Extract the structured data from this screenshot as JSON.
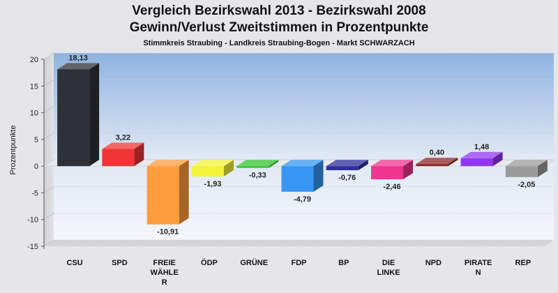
{
  "chart_data": {
    "type": "bar",
    "title": "Vergleich Bezirkswahl 2013 - Bezirkswahl 2008",
    "subtitle_line2": "Gewinn/Verlust Zweitstimmen in Prozentpunkte",
    "subtitle": "Stimmkreis Straubing - Landkreis Straubing-Bogen - Markt SCHWARZACH",
    "xlabel": "",
    "ylabel": "Prozentpunkte",
    "ylim": [
      -15,
      20
    ],
    "yticks": [
      20,
      15,
      10,
      5,
      0,
      -5,
      -10,
      -15
    ],
    "grid": true,
    "categories": [
      [
        "CSU"
      ],
      [
        "SPD"
      ],
      [
        "FREIE",
        "WÄHLE",
        "R"
      ],
      [
        "ÖDP"
      ],
      [
        "GRÜNE"
      ],
      [
        "FDP"
      ],
      [
        "BP"
      ],
      [
        "DIE",
        "LINKE"
      ],
      [
        "NPD"
      ],
      [
        "PIRATE",
        "N"
      ],
      [
        "REP"
      ]
    ],
    "values": [
      18.13,
      3.22,
      -10.91,
      -1.93,
      -0.33,
      -4.79,
      -0.76,
      -2.46,
      0.4,
      1.48,
      -2.05
    ],
    "value_labels": [
      "18,13",
      "3,22",
      "-10,91",
      "-1,93",
      "-0,33",
      "-4,79",
      "-0,76",
      "-2,46",
      "0,40",
      "1,48",
      "-2,05"
    ],
    "colors": [
      "#2e3138",
      "#ef3535",
      "#ff9c3c",
      "#f3f33a",
      "#31c631",
      "#3597f3",
      "#2e2e9c",
      "#f0358f",
      "#8c2a2a",
      "#9138ef",
      "#9b9b9b"
    ]
  }
}
